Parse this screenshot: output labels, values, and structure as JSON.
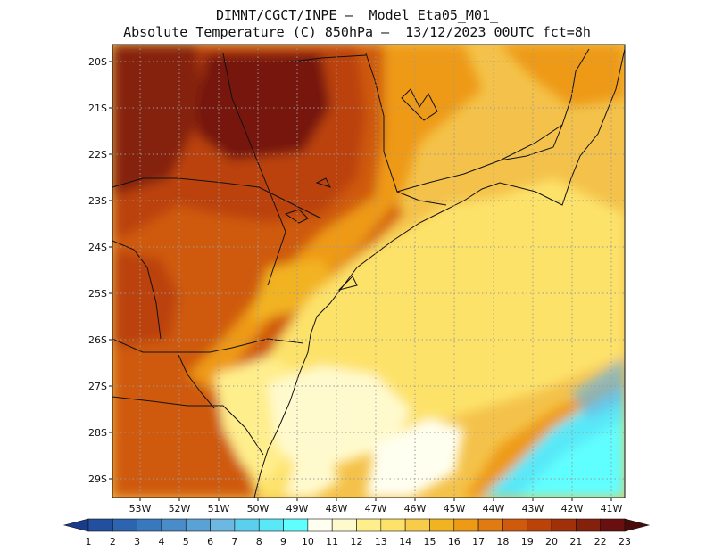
{
  "header": {
    "line1": "DIMNT/CGCT/INPE –  Model Eta05_M01_",
    "line2": "Absolute Temperature (C) 850hPa –  13/12/2023 00UTC fct=8h"
  },
  "axes": {
    "lat_labels": [
      "20S",
      "21S",
      "22S",
      "23S",
      "24S",
      "25S",
      "26S",
      "27S",
      "28S",
      "29S"
    ],
    "lon_labels": [
      "53W",
      "52W",
      "51W",
      "50W",
      "49W",
      "48W",
      "47W",
      "46W",
      "45W",
      "44W",
      "43W",
      "42W",
      "41W"
    ]
  },
  "colorbar": {
    "labels": [
      "1",
      "2",
      "3",
      "4",
      "5",
      "6",
      "7",
      "8",
      "9",
      "10",
      "11",
      "12",
      "13",
      "14",
      "15",
      "16",
      "17",
      "18",
      "19",
      "20",
      "21",
      "22",
      "23"
    ],
    "colors": [
      "#1a3a8a",
      "#22509e",
      "#2c64b0",
      "#3a78be",
      "#4a8cc8",
      "#5aa2d6",
      "#6cb8e2",
      "#5ad0ee",
      "#58e8f8",
      "#60ffff",
      "#fffff0",
      "#fffacd",
      "#ffee8c",
      "#fde26a",
      "#f8cc48",
      "#f2b320",
      "#ee9a14",
      "#e07a12",
      "#cf5a0c",
      "#bb430a",
      "#a0300a",
      "#85200a",
      "#6a0f0f",
      "#4a0a0a"
    ]
  },
  "legend_colors": {
    "cold_extreme": "#1a3a8a",
    "warm_extreme": "#4a0a0a"
  }
}
